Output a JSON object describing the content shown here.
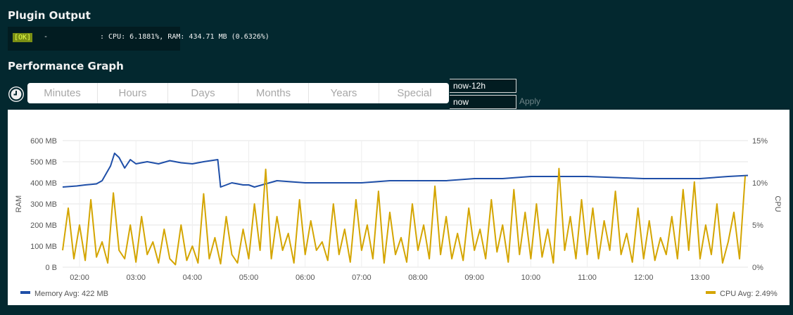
{
  "plugin_output": {
    "title": "Plugin Output",
    "status": "[OK]",
    "host": "-",
    "message": ": CPU: 6.1881%, RAM: 434.71 MB (0.6326%)"
  },
  "performance": {
    "title": "Performance Graph",
    "tabs": [
      "Minutes",
      "Hours",
      "Days",
      "Months",
      "Years",
      "Special"
    ],
    "from_value": "now-12h",
    "to_value": "now",
    "apply_label": "Apply"
  },
  "colors": {
    "memory": "#1f4fa8",
    "cpu": "#d4a500",
    "background": "#03282f"
  },
  "chart_data": {
    "type": "line",
    "x_ticks": [
      "02:00",
      "03:00",
      "04:00",
      "05:00",
      "06:00",
      "07:00",
      "08:00",
      "09:00",
      "10:00",
      "11:00",
      "12:00",
      "13:00"
    ],
    "y_left": {
      "label": "RAM",
      "ticks": [
        "0 B",
        "100 MB",
        "200 MB",
        "300 MB",
        "400 MB",
        "500 MB",
        "600 MB"
      ],
      "range": [
        0,
        600
      ],
      "unit": "MB"
    },
    "y_right": {
      "label": "CPU",
      "ticks": [
        "0%",
        "5%",
        "10%",
        "15%"
      ],
      "range": [
        0,
        15
      ],
      "unit": "%"
    },
    "grid": true,
    "legend_placement": "bottom",
    "x_range_hours": [
      1.7,
      13.85
    ],
    "series": [
      {
        "name": "Memory",
        "legend": "Memory  Avg: 422 MB",
        "axis": "left",
        "x": [
          1.7,
          1.95,
          2.1,
          2.3,
          2.4,
          2.55,
          2.62,
          2.7,
          2.8,
          2.9,
          3.0,
          3.2,
          3.4,
          3.6,
          3.8,
          4.0,
          4.2,
          4.45,
          4.5,
          4.7,
          4.9,
          5.0,
          5.1,
          5.5,
          6.0,
          6.5,
          7.0,
          7.5,
          8.0,
          8.5,
          9.0,
          9.5,
          10.0,
          10.5,
          11.0,
          11.5,
          12.0,
          12.5,
          13.0,
          13.5,
          13.85
        ],
        "values": [
          380,
          385,
          390,
          395,
          410,
          480,
          540,
          520,
          470,
          510,
          490,
          500,
          490,
          505,
          495,
          490,
          500,
          510,
          380,
          400,
          390,
          390,
          380,
          410,
          400,
          400,
          400,
          410,
          410,
          410,
          420,
          420,
          430,
          430,
          430,
          425,
          420,
          420,
          420,
          430,
          435
        ]
      },
      {
        "name": "CPU",
        "legend": "CPU  Avg: 2.49%",
        "axis": "right",
        "x": [
          1.7,
          1.8,
          1.9,
          2.0,
          2.1,
          2.2,
          2.3,
          2.4,
          2.5,
          2.6,
          2.7,
          2.8,
          2.9,
          3.0,
          3.1,
          3.2,
          3.3,
          3.4,
          3.5,
          3.6,
          3.7,
          3.8,
          3.9,
          4.0,
          4.1,
          4.2,
          4.3,
          4.4,
          4.5,
          4.6,
          4.7,
          4.8,
          4.9,
          5.0,
          5.1,
          5.2,
          5.3,
          5.4,
          5.5,
          5.6,
          5.7,
          5.8,
          5.9,
          6.0,
          6.1,
          6.2,
          6.3,
          6.4,
          6.5,
          6.6,
          6.7,
          6.8,
          6.9,
          7.0,
          7.1,
          7.2,
          7.3,
          7.4,
          7.5,
          7.6,
          7.7,
          7.8,
          7.9,
          8.0,
          8.1,
          8.2,
          8.3,
          8.4,
          8.5,
          8.6,
          8.7,
          8.8,
          8.9,
          9.0,
          9.1,
          9.2,
          9.3,
          9.4,
          9.5,
          9.6,
          9.7,
          9.8,
          9.9,
          10.0,
          10.1,
          10.2,
          10.3,
          10.4,
          10.5,
          10.6,
          10.7,
          10.8,
          10.9,
          11.0,
          11.1,
          11.2,
          11.3,
          11.4,
          11.5,
          11.6,
          11.7,
          11.8,
          11.9,
          12.0,
          12.1,
          12.2,
          12.3,
          12.4,
          12.5,
          12.6,
          12.7,
          12.8,
          12.9,
          13.0,
          13.1,
          13.2,
          13.3,
          13.4,
          13.5,
          13.6,
          13.7,
          13.8
        ],
        "values": [
          2,
          7,
          1,
          5,
          0.8,
          8,
          1.2,
          3,
          0.5,
          8.8,
          2,
          1,
          5,
          0.6,
          6,
          1.5,
          3,
          0.5,
          4.5,
          1,
          0.3,
          5,
          0.8,
          2.5,
          0.5,
          8.7,
          1,
          3.5,
          0.4,
          6,
          1.5,
          0.5,
          4.5,
          1,
          7.5,
          2,
          11.6,
          1,
          6,
          2,
          4,
          0.5,
          8,
          1.5,
          5.5,
          2,
          3,
          0.8,
          7.5,
          1.5,
          4.5,
          0.6,
          8,
          2,
          5,
          1,
          9,
          0.5,
          6.5,
          1.5,
          3.5,
          0.6,
          7.5,
          2,
          5,
          1,
          9.6,
          1.5,
          6,
          1,
          4,
          0.8,
          7,
          2,
          4.5,
          1,
          8,
          1.8,
          5,
          0.6,
          9.2,
          1.5,
          6.5,
          1,
          7.5,
          1.2,
          4.5,
          0.5,
          11.7,
          2,
          6,
          1,
          8,
          1.5,
          7,
          1,
          5.5,
          2,
          9,
          1.5,
          4,
          0.6,
          7,
          1,
          5.5,
          0.8,
          3.5,
          1.5,
          6,
          1,
          9.2,
          2,
          10.1,
          1,
          5,
          1.5,
          7.5,
          0.5,
          3,
          6.5,
          1,
          10.8
        ]
      }
    ]
  }
}
